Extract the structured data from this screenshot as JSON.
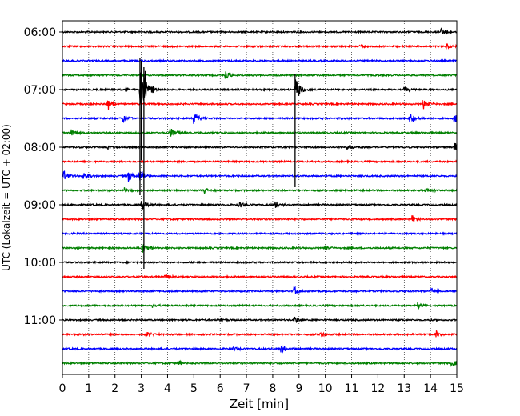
{
  "chart_data": {
    "type": "line",
    "title": "",
    "xlabel": "Zeit  [min]",
    "ylabel": "UTC (Lokalzeit = UTC + 02:00)",
    "xlim": [
      0,
      15
    ],
    "x_ticks": [
      "0",
      "1",
      "2",
      "3",
      "4",
      "5",
      "6",
      "7",
      "8",
      "9",
      "10",
      "11",
      "12",
      "13",
      "14",
      "15"
    ],
    "y_ticks": [
      "06:00",
      "07:00",
      "08:00",
      "09:00",
      "10:00",
      "11:00"
    ],
    "grid": "vertical dotted",
    "trace_minutes_per_line": 15,
    "first_trace_time": "06:00",
    "colors": [
      "#000000",
      "#ff0000",
      "#0000ff",
      "#008000"
    ],
    "traces": [
      {
        "time": "06:00",
        "color": "black",
        "events": [
          [
            14.4,
            6
          ]
        ]
      },
      {
        "time": "06:15",
        "color": "red",
        "events": [
          [
            11.3,
            3
          ],
          [
            14.6,
            4
          ]
        ]
      },
      {
        "time": "06:30",
        "color": "blue",
        "events": []
      },
      {
        "time": "06:45",
        "color": "green",
        "events": [
          [
            6.2,
            6
          ]
        ]
      },
      {
        "time": "07:00",
        "color": "black",
        "events": [
          [
            2.4,
            4
          ],
          [
            2.95,
            28
          ],
          [
            3.1,
            24
          ],
          [
            8.85,
            18
          ],
          [
            13.0,
            4
          ]
        ]
      },
      {
        "time": "07:15",
        "color": "red",
        "events": [
          [
            1.7,
            11
          ],
          [
            13.7,
            7
          ]
        ]
      },
      {
        "time": "07:30",
        "color": "blue",
        "events": [
          [
            2.3,
            6
          ],
          [
            5.0,
            10
          ],
          [
            13.2,
            10
          ],
          [
            14.9,
            6
          ]
        ]
      },
      {
        "time": "07:45",
        "color": "green",
        "events": [
          [
            0.3,
            6
          ],
          [
            4.1,
            7
          ]
        ]
      },
      {
        "time": "08:00",
        "color": "black",
        "events": [
          [
            1.7,
            4
          ],
          [
            10.8,
            4
          ],
          [
            14.9,
            6
          ]
        ]
      },
      {
        "time": "08:15",
        "color": "red",
        "events": []
      },
      {
        "time": "08:30",
        "color": "blue",
        "events": [
          [
            0.05,
            7
          ],
          [
            0.8,
            6
          ],
          [
            2.5,
            9
          ],
          [
            2.9,
            9
          ]
        ]
      },
      {
        "time": "08:45",
        "color": "green",
        "events": [
          [
            2.35,
            5
          ],
          [
            5.4,
            4
          ],
          [
            13.8,
            4
          ]
        ]
      },
      {
        "time": "09:00",
        "color": "black",
        "events": [
          [
            3.0,
            6
          ],
          [
            6.7,
            5
          ],
          [
            8.1,
            6
          ]
        ]
      },
      {
        "time": "09:15",
        "color": "red",
        "events": [
          [
            13.3,
            5
          ]
        ]
      },
      {
        "time": "09:30",
        "color": "blue",
        "events": []
      },
      {
        "time": "09:45",
        "color": "green",
        "events": [
          [
            3.05,
            8
          ],
          [
            10.0,
            4
          ]
        ]
      },
      {
        "time": "10:00",
        "color": "black",
        "events": []
      },
      {
        "time": "10:15",
        "color": "red",
        "events": [
          [
            3.9,
            4
          ]
        ]
      },
      {
        "time": "10:30",
        "color": "blue",
        "events": [
          [
            8.8,
            6
          ],
          [
            14.0,
            5
          ]
        ]
      },
      {
        "time": "10:45",
        "color": "green",
        "events": [
          [
            3.4,
            4
          ],
          [
            13.5,
            5
          ]
        ]
      },
      {
        "time": "11:00",
        "color": "black",
        "events": [
          [
            6.0,
            3
          ],
          [
            8.8,
            5
          ]
        ]
      },
      {
        "time": "11:15",
        "color": "red",
        "events": [
          [
            3.15,
            6
          ],
          [
            9.8,
            4
          ],
          [
            14.2,
            5
          ]
        ]
      },
      {
        "time": "11:30",
        "color": "blue",
        "events": [
          [
            6.5,
            3
          ],
          [
            8.3,
            6
          ]
        ]
      },
      {
        "time": "11:45",
        "color": "green",
        "events": [
          [
            4.4,
            4
          ],
          [
            14.8,
            6
          ]
        ]
      }
    ]
  }
}
